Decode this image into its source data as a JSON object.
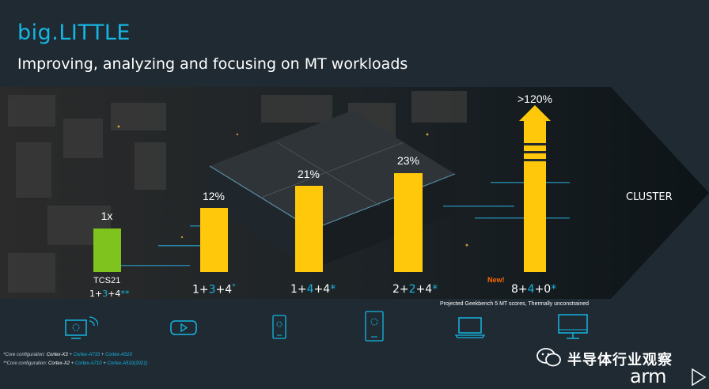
{
  "slide": {
    "title": "big.LITTLE",
    "subtitle": "Improving, analyzing and focusing on MT workloads"
  },
  "chart_data": {
    "type": "bar",
    "categories": [
      "1+3+4**",
      "1+3+4*",
      "1+4+4*",
      "2+2+4*",
      "8+4+0*"
    ],
    "value_labels": [
      "1x",
      "12%",
      "21%",
      "23%",
      ">120%"
    ],
    "values": [
      1.0,
      1.12,
      1.21,
      1.23,
      2.2
    ],
    "ylim": [
      0.7,
      2.3
    ],
    "colors": {
      "baseline": "#7ec31e",
      "bars": "#ffc80a"
    },
    "first_label": "TCS21",
    "cluster_label": "CLUSTER",
    "new_tag": "New!",
    "footnote": "Projected Geekbench 5 MT scores, Thermally unconstrained"
  },
  "configs": [
    {
      "a": "1+",
      "b": "3",
      "c": "+4",
      "sup": "**"
    },
    {
      "a": "1+",
      "b": "3",
      "c": "+4",
      "sup": "*"
    },
    {
      "a": "1+",
      "b": "4",
      "c": "+4",
      "sup": "*"
    },
    {
      "a": "2+",
      "b": "2",
      "c": "+4",
      "sup": "*"
    },
    {
      "a": "8+",
      "b": "4",
      "c": "+0",
      "sup": "*"
    }
  ],
  "notes": {
    "n1": {
      "prefix": "*Core configuration: ",
      "x": "Cortex-X3",
      "p1": " + ",
      "a7": "Cortex-A715",
      "p2": " + ",
      "a5": "Cortex-A510"
    },
    "n2": {
      "prefix": "**Core configuration: ",
      "x": "Cortex-X2",
      "p1": " + ",
      "a7": "Cortex-A710",
      "p2": " + ",
      "a5": "Cortex-A510(2021)"
    }
  },
  "icons": [
    "iot-display-icon",
    "vr-headset-icon",
    "smartphone-icon",
    "large-smartphone-icon",
    "laptop-icon",
    "desktop-monitor-icon"
  ],
  "watermark": {
    "text": "半导体行业观察",
    "brand": "arm"
  }
}
